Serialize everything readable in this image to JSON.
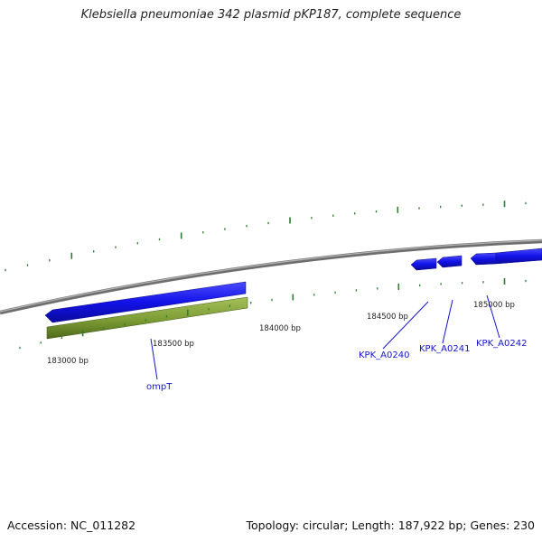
{
  "title": "Klebsiella pneumoniae 342 plasmid pKP187, complete sequence",
  "footer": {
    "accession": "Accession: NC_011282",
    "info": "Topology: circular; Length: 187,922 bp; Genes: 230"
  },
  "position_labels": [
    "183000 bp",
    "183500 bp",
    "184000 bp",
    "184500 bp",
    "185000 bp"
  ],
  "gene_labels": [
    "ompT",
    "KPK_A0240",
    "KPK_A0241",
    "KPK_A0242"
  ],
  "colors": {
    "backbone": "#8a8a8a",
    "forward_gene": "#1010e6",
    "feature": "#6b8e23",
    "tick": "#2e7d32",
    "label": "#1414d2"
  }
}
